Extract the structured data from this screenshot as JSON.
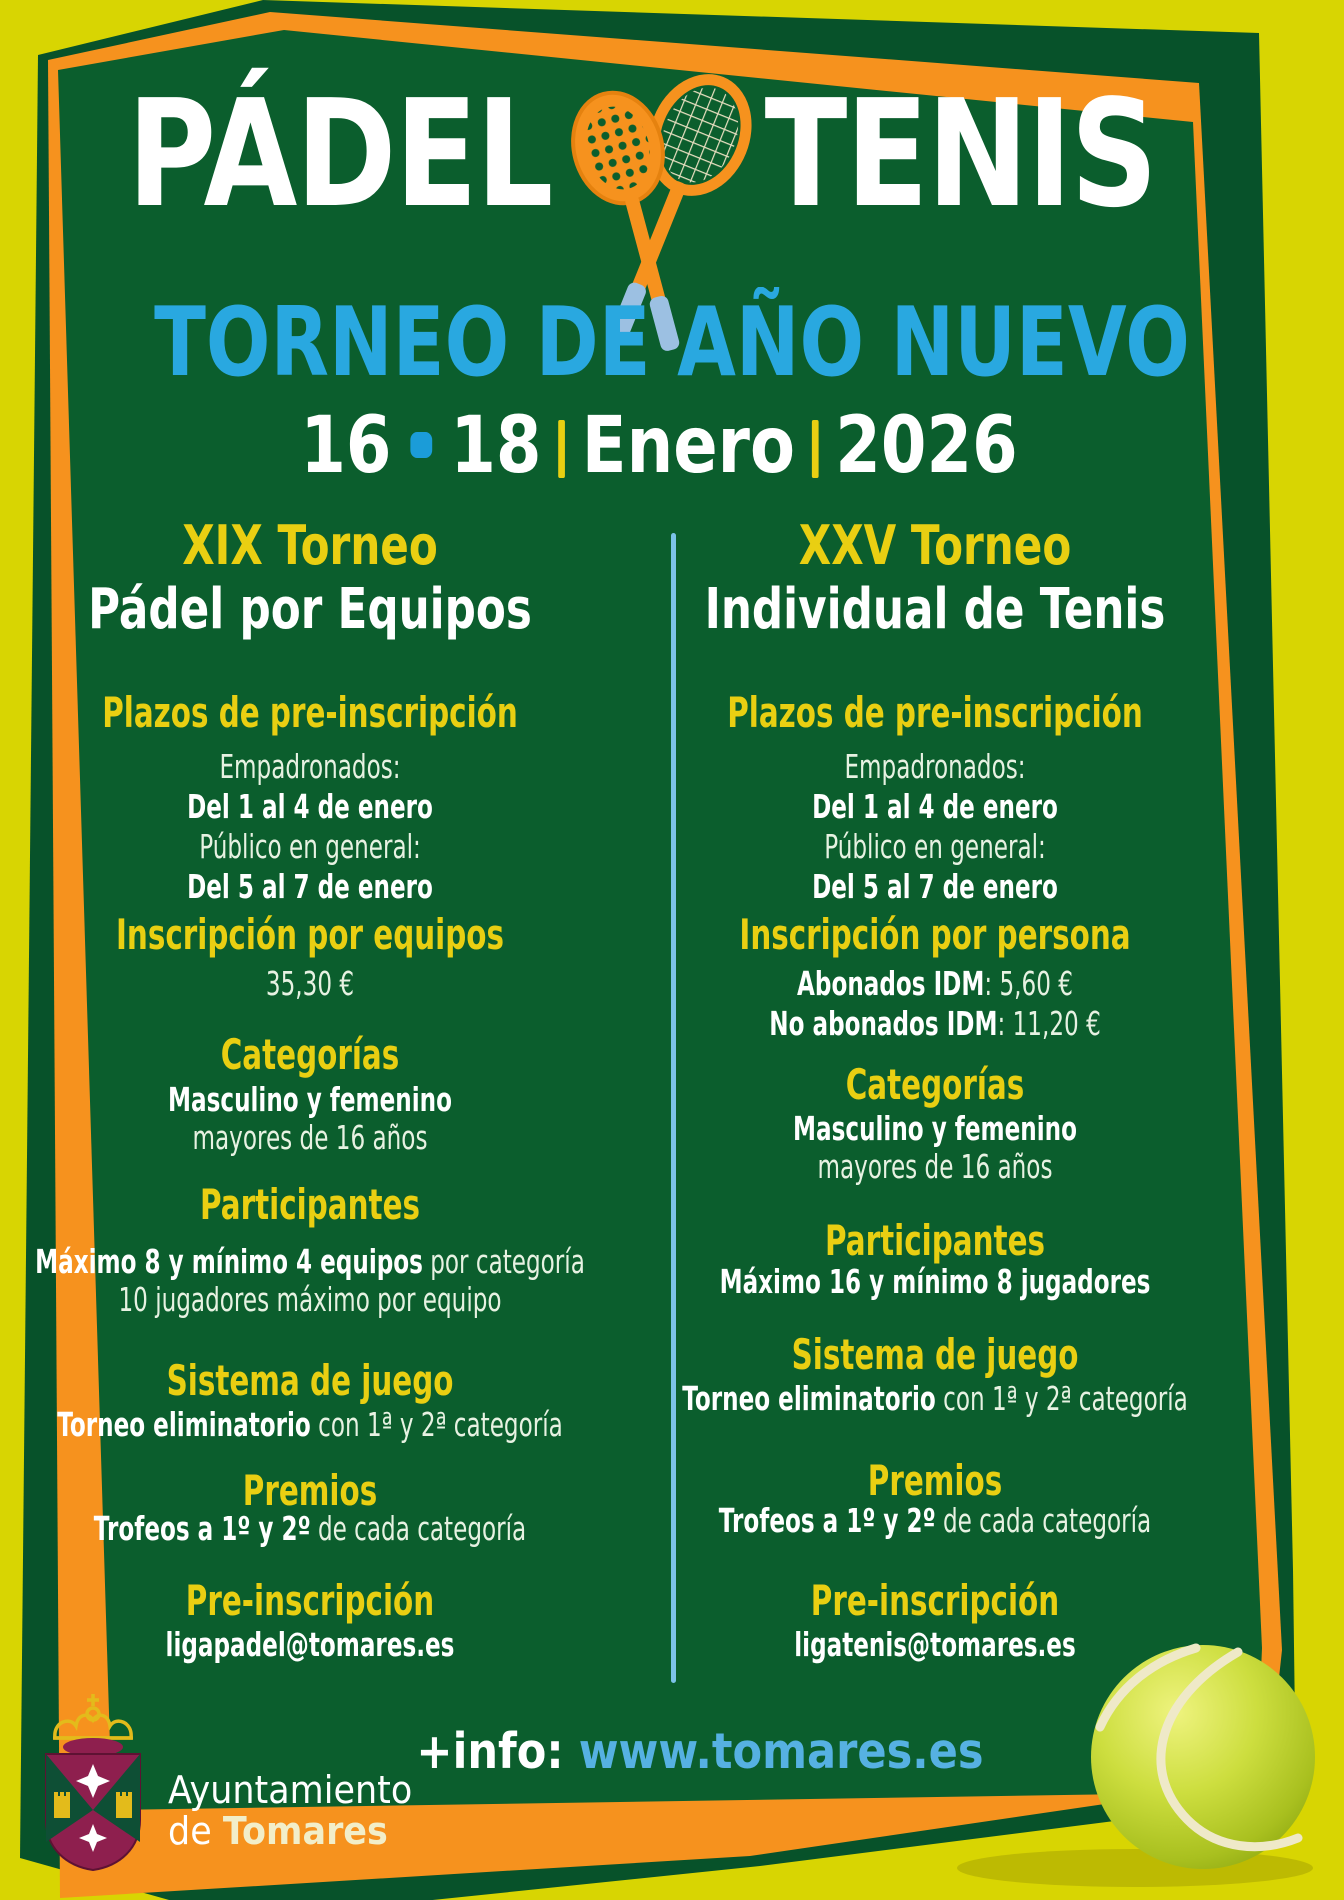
{
  "poster": {
    "title_left": "PÁDEL",
    "title_right": "TENIS",
    "subtitle": "TORNEO DE AÑO NUEVO",
    "date": {
      "day1": "16",
      "separator_dot": "•",
      "day2": "18",
      "separator_bar": "|",
      "month": "Enero",
      "year": "2026"
    }
  },
  "columns": [
    {
      "id": "padel",
      "title_line1": "XIX Torneo",
      "title_line2": "Pádel por Equipos",
      "sections": [
        {
          "heading": "Plazos de pre-inscripción",
          "lines": [
            {
              "text": "Empadronados:"
            },
            {
              "text": "Del 1 al 4 de enero",
              "bold": true
            },
            {
              "text": "Público en general:"
            },
            {
              "text": "Del 5 al 7 de enero",
              "bold": true
            }
          ]
        },
        {
          "heading": "Inscripción por equipos",
          "lines": [
            {
              "text": "35,30 €"
            }
          ]
        },
        {
          "heading": "Categorías",
          "lines": [
            {
              "text": "Masculino y femenino",
              "bold": true
            },
            {
              "text": "mayores de 16 años"
            }
          ]
        },
        {
          "heading": "Participantes",
          "lines": [
            {
              "bold_part": "Máximo 8 y mínimo 4 equipos",
              "text": " por categoría"
            },
            {
              "text": "10 jugadores máximo por equipo"
            }
          ]
        },
        {
          "heading": "Sistema de juego",
          "lines": [
            {
              "bold_part": "Torneo eliminatorio",
              "text": " con 1ª y 2ª categoría"
            }
          ]
        },
        {
          "heading": "Premios",
          "lines": [
            {
              "bold_part": "Trofeos a 1º y 2º",
              "text": " de cada categoría"
            }
          ]
        },
        {
          "heading": "Pre-inscripción",
          "lines": [
            {
              "text": "ligapadel@tomares.es",
              "bold": true
            }
          ]
        }
      ]
    },
    {
      "id": "tenis",
      "title_line1": "XXV Torneo",
      "title_line2": "Individual de Tenis",
      "sections": [
        {
          "heading": "Plazos de pre-inscripción",
          "lines": [
            {
              "text": "Empadronados:"
            },
            {
              "text": "Del 1 al 4 de enero",
              "bold": true
            },
            {
              "text": "Público en general:"
            },
            {
              "text": "Del 5 al 7 de enero",
              "bold": true
            }
          ]
        },
        {
          "heading": "Inscripción por persona",
          "lines": [
            {
              "bold_part": "Abonados IDM",
              "text": ": 5,60 €"
            },
            {
              "bold_part": "No abonados IDM",
              "text": ": 11,20 €"
            }
          ]
        },
        {
          "heading": "Categorías",
          "lines": [
            {
              "text": "Masculino y femenino",
              "bold": true
            },
            {
              "text": "mayores de 16 años"
            }
          ]
        },
        {
          "heading": "Participantes",
          "lines": [
            {
              "text": "Máximo 16 y mínimo 8 jugadores",
              "bold": true
            }
          ]
        },
        {
          "heading": "Sistema de juego",
          "lines": [
            {
              "bold_part": "Torneo eliminatorio",
              "text": " con 1ª y 2ª categoría"
            }
          ]
        },
        {
          "heading": "Premios",
          "lines": [
            {
              "bold_part": "Trofeos a 1º y 2º",
              "text": " de cada categoría"
            }
          ]
        },
        {
          "heading": "Pre-inscripción",
          "lines": [
            {
              "text": "ligatenis@tomares.es",
              "bold": true
            }
          ]
        }
      ]
    }
  ],
  "footer": {
    "info_label": "+info:",
    "website": "www.tomares.es",
    "org_line1": "Ayuntamiento",
    "org_line2_normal": "de ",
    "org_line2_bold": "Tomares"
  },
  "icons": {
    "rackets": "crossed-padel-and-tennis-rackets",
    "ball": "tennis-ball",
    "crest": "tomares-coat-of-arms"
  },
  "colors": {
    "background_yellow": "#d8d502",
    "panel_green": "#0b5e2d",
    "outer_green": "#07522a",
    "accent_orange": "#f6921e",
    "heading_yellow": "#e9cf12",
    "subtitle_blue": "#29a8e0",
    "divider_blue": "#7cc3e8",
    "link_blue": "#56b1e2",
    "grip_blue": "#9cc0e2",
    "crest_burgundy": "#8e1f4e",
    "crest_green": "#0e4f35",
    "crest_gold": "#e3bb1b"
  }
}
